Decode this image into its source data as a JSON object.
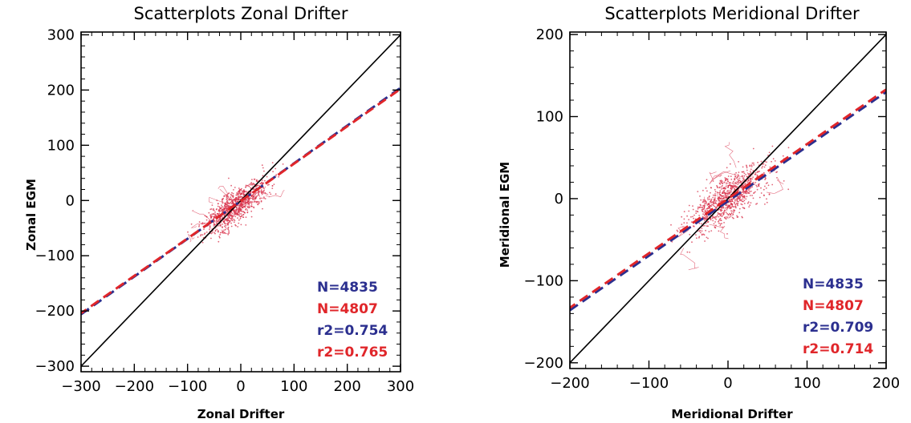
{
  "colors": {
    "series_blue": "#2b2f8f",
    "series_red": "#e0262a",
    "scatter": "#d8304a",
    "identity": "#000000"
  },
  "chart_data": [
    {
      "type": "scatter",
      "title": "Scatterplots Zonal Drifter",
      "xlabel": "Zonal Drifter",
      "ylabel": "Zonal EGM",
      "xlim": [
        -300,
        300
      ],
      "ylim": [
        -310,
        305
      ],
      "xticks": [
        -300,
        -200,
        -100,
        0,
        100,
        200,
        300
      ],
      "yticks": [
        -300,
        -200,
        -100,
        0,
        100,
        200,
        300
      ],
      "xtick_labels": [
        "−300",
        "−200",
        "−100",
        "0",
        "100",
        "200",
        "300"
      ],
      "ytick_labels": [
        "−300",
        "−200",
        "−100",
        "0",
        "100",
        "200",
        "300"
      ],
      "reference_line": {
        "name": "1:1",
        "slope": 1,
        "intercept": 0
      },
      "regression_lines": [
        {
          "series": "blue",
          "x": [
            -300,
            300
          ],
          "y": [
            -206,
            204
          ]
        },
        {
          "series": "red",
          "x": [
            -300,
            300
          ],
          "y": [
            -204,
            202
          ]
        }
      ],
      "point_cloud": {
        "center_x": -10,
        "center_y": -10,
        "spread_x": 28,
        "spread_y": 20,
        "slope": 0.68,
        "n_points": 4807
      },
      "annotations": [
        {
          "text": "N=4835",
          "series": "blue"
        },
        {
          "text": "N=4807",
          "series": "red"
        },
        {
          "text": "r2=0.754",
          "series": "blue"
        },
        {
          "text": "r2=0.765",
          "series": "red"
        }
      ],
      "grid": false,
      "legend": "none"
    },
    {
      "type": "scatter",
      "title": "Scatterplots Meridional Drifter",
      "xlabel": "Meridional Drifter",
      "ylabel": "Meridional EGM",
      "xlim": [
        -200,
        200
      ],
      "ylim": [
        -207,
        203
      ],
      "xticks": [
        -200,
        -100,
        0,
        100,
        200
      ],
      "yticks": [
        -200,
        -100,
        0,
        100,
        200
      ],
      "xtick_labels": [
        "−200",
        "−100",
        "0",
        "100",
        "200"
      ],
      "ytick_labels": [
        "−200",
        "−100",
        "0",
        "100",
        "200"
      ],
      "reference_line": {
        "name": "1:1",
        "slope": 1,
        "intercept": 0
      },
      "regression_lines": [
        {
          "series": "blue",
          "x": [
            -200,
            200
          ],
          "y": [
            -136,
            130
          ]
        },
        {
          "series": "red",
          "x": [
            -200,
            200
          ],
          "y": [
            -133,
            133
          ]
        }
      ],
      "point_cloud": {
        "center_x": 0,
        "center_y": 0,
        "spread_x": 25,
        "spread_y": 18,
        "slope": 0.66,
        "n_points": 4807
      },
      "annotations": [
        {
          "text": "N=4835",
          "series": "blue"
        },
        {
          "text": "N=4807",
          "series": "red"
        },
        {
          "text": "r2=0.709",
          "series": "blue"
        },
        {
          "text": "r2=0.714",
          "series": "red"
        }
      ],
      "grid": false,
      "legend": "none"
    }
  ]
}
